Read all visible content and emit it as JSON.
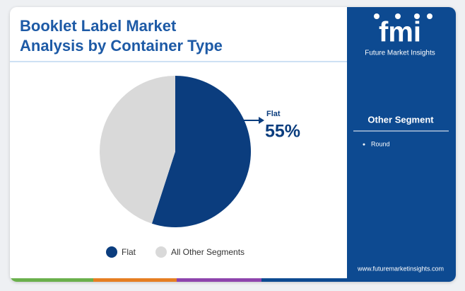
{
  "chart_data": {
    "type": "pie",
    "title": "Booklet Label Market Analysis by Container Type",
    "categories": [
      "Flat",
      "All Other Segments"
    ],
    "values": [
      55,
      45
    ],
    "value_labels": [
      "55%",
      null
    ],
    "colors": [
      "#0b3d7e",
      "#d9d9d9"
    ],
    "legend": "bottom"
  },
  "sidebar": {
    "brand": "fmi",
    "brand_name": "Future Market Insights",
    "heading": "Other Segment",
    "items": [
      "Round"
    ],
    "url": "www.futuremarketinsights.com"
  }
}
